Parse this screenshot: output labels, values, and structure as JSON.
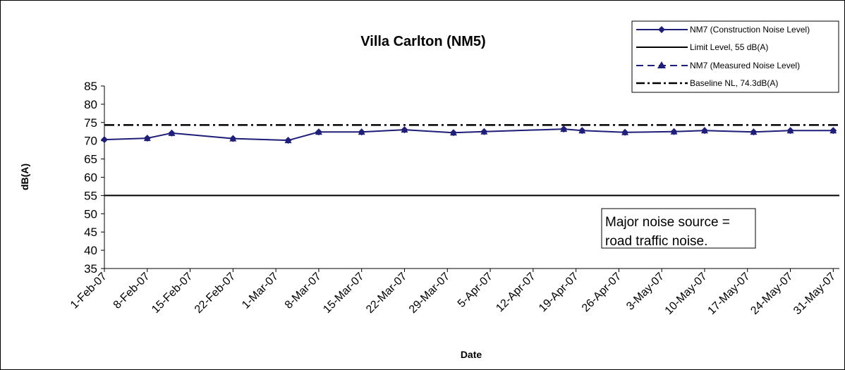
{
  "chart_data": {
    "type": "line",
    "title": "Villa Carlton (NM5)",
    "xlabel": "Date",
    "ylabel": "dB(A)",
    "ylim": [
      35,
      85
    ],
    "yticks": [
      35,
      40,
      45,
      50,
      55,
      60,
      65,
      70,
      75,
      80,
      85
    ],
    "x_range": [
      "2007-02-01",
      "2007-06-01"
    ],
    "xtick_dates": [
      "2007-02-01",
      "2007-02-08",
      "2007-02-15",
      "2007-02-22",
      "2007-03-01",
      "2007-03-08",
      "2007-03-15",
      "2007-03-22",
      "2007-03-29",
      "2007-04-05",
      "2007-04-12",
      "2007-04-19",
      "2007-04-26",
      "2007-05-03",
      "2007-05-10",
      "2007-05-17",
      "2007-05-24",
      "2007-05-31"
    ],
    "xtick_labels": [
      "1-Feb-07",
      "8-Feb-07",
      "15-Feb-07",
      "22-Feb-07",
      "1-Mar-07",
      "8-Mar-07",
      "15-Mar-07",
      "22-Mar-07",
      "29-Mar-07",
      "5-Apr-07",
      "12-Apr-07",
      "19-Apr-07",
      "26-Apr-07",
      "3-May-07",
      "10-May-07",
      "17-May-07",
      "24-May-07",
      "31-May-07"
    ],
    "series": [
      {
        "name": "NM7 (Construction Noise Level)",
        "color": "#1f1f7a",
        "marker": "diamond",
        "dates": [
          "2007-02-01",
          "2007-02-08",
          "2007-02-12",
          "2007-02-22",
          "2007-03-03",
          "2007-03-08",
          "2007-03-15",
          "2007-03-22",
          "2007-03-30",
          "2007-04-04",
          "2007-04-17",
          "2007-04-20",
          "2007-04-27",
          "2007-05-05",
          "2007-05-10",
          "2007-05-18",
          "2007-05-24",
          "2007-05-31"
        ],
        "values": [
          70.3,
          70.7,
          72.1,
          70.6,
          70.1,
          72.4,
          72.4,
          73.0,
          72.2,
          72.5,
          73.2,
          72.8,
          72.3,
          72.5,
          72.8,
          72.4,
          72.8,
          72.8
        ]
      },
      {
        "name": "Limit Level, 55 dB(A)",
        "color": "#000000",
        "value": 55
      },
      {
        "name": "NM7 (Measured Noise Level)",
        "color": "#1f1f7a",
        "marker": "triangle",
        "dates": [
          "2007-02-08",
          "2007-02-12",
          "2007-02-22",
          "2007-03-03",
          "2007-03-08",
          "2007-03-15",
          "2007-03-22",
          "2007-03-30",
          "2007-04-04",
          "2007-04-17",
          "2007-04-20",
          "2007-04-27",
          "2007-05-05",
          "2007-05-10",
          "2007-05-18",
          "2007-05-24",
          "2007-05-31"
        ],
        "values": [
          70.7,
          72.1,
          70.6,
          70.1,
          72.4,
          72.4,
          73.0,
          72.2,
          72.5,
          73.2,
          72.8,
          72.3,
          72.5,
          72.8,
          72.4,
          72.8,
          72.8
        ]
      },
      {
        "name": "Baseline NL, 74.3dB(A)",
        "color": "#000000",
        "value": 74.3
      }
    ],
    "annotation": {
      "lines": [
        "Major noise source =",
        "road traffic noise."
      ]
    },
    "legend": "top-right",
    "grid": false
  }
}
